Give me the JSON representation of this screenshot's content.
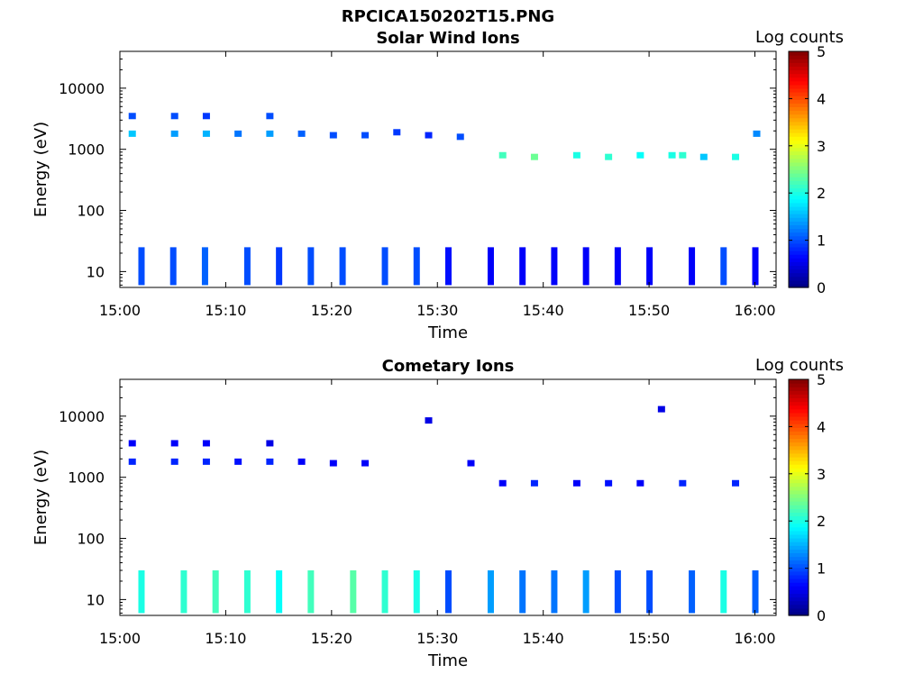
{
  "figure_title": "RPCICA150202T15.PNG",
  "chart_data": [
    {
      "type": "heatmap",
      "title": "Solar Wind Ions",
      "xlabel": "Time",
      "ylabel": "Energy (eV)",
      "yscale": "log",
      "ylim": [
        5.5,
        40000
      ],
      "xlim": [
        "15:00",
        "16:02"
      ],
      "x_ticks": [
        "15:00",
        "15:10",
        "15:20",
        "15:30",
        "15:40",
        "15:50",
        "16:00"
      ],
      "y_ticks": [
        {
          "value": 10,
          "label": "10"
        },
        {
          "value": 100,
          "label": "100"
        },
        {
          "value": 1000,
          "label": "1000"
        },
        {
          "value": 10000,
          "label": "10000"
        }
      ],
      "colorbar": {
        "label": "Log counts",
        "range": [
          0,
          5
        ],
        "ticks": [
          "0",
          "1",
          "2",
          "3",
          "4",
          "5"
        ],
        "colormap": "jet"
      },
      "cells": [
        {
          "t": "15:01",
          "e": 1800,
          "v": 1.6
        },
        {
          "t": "15:01",
          "e": 3500,
          "v": 1.0
        },
        {
          "t": "15:05",
          "e": 1800,
          "v": 1.4
        },
        {
          "t": "15:05",
          "e": 3500,
          "v": 1.0
        },
        {
          "t": "15:08",
          "e": 1800,
          "v": 1.5
        },
        {
          "t": "15:08",
          "e": 3500,
          "v": 0.9
        },
        {
          "t": "15:11",
          "e": 1800,
          "v": 1.2
        },
        {
          "t": "15:14",
          "e": 1800,
          "v": 1.4
        },
        {
          "t": "15:14",
          "e": 3500,
          "v": 1.0
        },
        {
          "t": "15:17",
          "e": 1800,
          "v": 1.1
        },
        {
          "t": "15:20",
          "e": 1700,
          "v": 1.0
        },
        {
          "t": "15:23",
          "e": 1700,
          "v": 1.0
        },
        {
          "t": "15:26",
          "e": 1900,
          "v": 0.9
        },
        {
          "t": "15:29",
          "e": 1700,
          "v": 0.8
        },
        {
          "t": "15:32",
          "e": 1600,
          "v": 1.0
        },
        {
          "t": "15:36",
          "e": 800,
          "v": 2.2
        },
        {
          "t": "15:39",
          "e": 750,
          "v": 2.4
        },
        {
          "t": "15:43",
          "e": 800,
          "v": 2.0
        },
        {
          "t": "15:46",
          "e": 750,
          "v": 2.1
        },
        {
          "t": "15:49",
          "e": 800,
          "v": 1.9
        },
        {
          "t": "15:52",
          "e": 800,
          "v": 2.0
        },
        {
          "t": "15:53",
          "e": 800,
          "v": 2.1
        },
        {
          "t": "15:55",
          "e": 750,
          "v": 1.6
        },
        {
          "t": "15:58",
          "e": 750,
          "v": 2.0
        },
        {
          "t": "16:00",
          "e": 1800,
          "v": 1.3
        }
      ],
      "bursts": [
        {
          "t": "15:02",
          "lo": 6,
          "hi": 25,
          "v": 1.0
        },
        {
          "t": "15:05",
          "lo": 6,
          "hi": 25,
          "v": 1.0
        },
        {
          "t": "15:08",
          "lo": 6,
          "hi": 25,
          "v": 1.1
        },
        {
          "t": "15:12",
          "lo": 6,
          "hi": 25,
          "v": 1.0
        },
        {
          "t": "15:15",
          "lo": 6,
          "hi": 25,
          "v": 0.9
        },
        {
          "t": "15:18",
          "lo": 6,
          "hi": 25,
          "v": 1.0
        },
        {
          "t": "15:21",
          "lo": 6,
          "hi": 25,
          "v": 1.0
        },
        {
          "t": "15:25",
          "lo": 6,
          "hi": 25,
          "v": 1.0
        },
        {
          "t": "15:28",
          "lo": 6,
          "hi": 25,
          "v": 1.0
        },
        {
          "t": "15:31",
          "lo": 6,
          "hi": 25,
          "v": 0.7
        },
        {
          "t": "15:35",
          "lo": 6,
          "hi": 25,
          "v": 0.6
        },
        {
          "t": "15:38",
          "lo": 6,
          "hi": 25,
          "v": 0.6
        },
        {
          "t": "15:41",
          "lo": 6,
          "hi": 25,
          "v": 0.6
        },
        {
          "t": "15:44",
          "lo": 6,
          "hi": 25,
          "v": 0.6
        },
        {
          "t": "15:47",
          "lo": 6,
          "hi": 25,
          "v": 0.6
        },
        {
          "t": "15:50",
          "lo": 6,
          "hi": 25,
          "v": 0.6
        },
        {
          "t": "15:54",
          "lo": 6,
          "hi": 25,
          "v": 0.6
        },
        {
          "t": "15:57",
          "lo": 6,
          "hi": 25,
          "v": 1.0
        },
        {
          "t": "16:00",
          "lo": 6,
          "hi": 25,
          "v": 0.6
        }
      ]
    },
    {
      "type": "heatmap",
      "title": "Cometary Ions",
      "xlabel": "Time",
      "ylabel": "Energy (eV)",
      "yscale": "log",
      "ylim": [
        5.5,
        40000
      ],
      "xlim": [
        "15:00",
        "16:02"
      ],
      "x_ticks": [
        "15:00",
        "15:10",
        "15:20",
        "15:30",
        "15:40",
        "15:50",
        "16:00"
      ],
      "y_ticks": [
        {
          "value": 10,
          "label": "10"
        },
        {
          "value": 100,
          "label": "100"
        },
        {
          "value": 1000,
          "label": "1000"
        },
        {
          "value": 10000,
          "label": "10000"
        }
      ],
      "colorbar": {
        "label": "Log counts",
        "range": [
          0,
          5
        ],
        "ticks": [
          "0",
          "1",
          "2",
          "3",
          "4",
          "5"
        ],
        "colormap": "jet"
      },
      "cells": [
        {
          "t": "15:01",
          "e": 3600,
          "v": 0.6
        },
        {
          "t": "15:01",
          "e": 1800,
          "v": 0.8
        },
        {
          "t": "15:05",
          "e": 3600,
          "v": 0.6
        },
        {
          "t": "15:05",
          "e": 1800,
          "v": 0.8
        },
        {
          "t": "15:08",
          "e": 3600,
          "v": 0.6
        },
        {
          "t": "15:08",
          "e": 1800,
          "v": 0.8
        },
        {
          "t": "15:11",
          "e": 1800,
          "v": 0.7
        },
        {
          "t": "15:14",
          "e": 1800,
          "v": 0.8
        },
        {
          "t": "15:14",
          "e": 3600,
          "v": 0.5
        },
        {
          "t": "15:17",
          "e": 1800,
          "v": 0.6
        },
        {
          "t": "15:20",
          "e": 1700,
          "v": 0.6
        },
        {
          "t": "15:23",
          "e": 1700,
          "v": 0.6
        },
        {
          "t": "15:29",
          "e": 8500,
          "v": 0.5
        },
        {
          "t": "15:33",
          "e": 1700,
          "v": 0.6
        },
        {
          "t": "15:36",
          "e": 800,
          "v": 0.6
        },
        {
          "t": "15:39",
          "e": 800,
          "v": 0.8
        },
        {
          "t": "15:43",
          "e": 800,
          "v": 0.6
        },
        {
          "t": "15:46",
          "e": 800,
          "v": 0.7
        },
        {
          "t": "15:49",
          "e": 800,
          "v": 0.6
        },
        {
          "t": "15:51",
          "e": 13000,
          "v": 0.5
        },
        {
          "t": "15:53",
          "e": 800,
          "v": 0.8
        },
        {
          "t": "15:58",
          "e": 800,
          "v": 0.8
        }
      ],
      "bursts": [
        {
          "t": "15:02",
          "lo": 6,
          "hi": 30,
          "v": 2.0
        },
        {
          "t": "15:06",
          "lo": 6,
          "hi": 30,
          "v": 2.1
        },
        {
          "t": "15:09",
          "lo": 6,
          "hi": 30,
          "v": 2.2
        },
        {
          "t": "15:12",
          "lo": 6,
          "hi": 30,
          "v": 2.1
        },
        {
          "t": "15:15",
          "lo": 6,
          "hi": 30,
          "v": 1.9
        },
        {
          "t": "15:18",
          "lo": 6,
          "hi": 30,
          "v": 2.2
        },
        {
          "t": "15:22",
          "lo": 6,
          "hi": 30,
          "v": 2.3
        },
        {
          "t": "15:25",
          "lo": 6,
          "hi": 30,
          "v": 2.1
        },
        {
          "t": "15:28",
          "lo": 6,
          "hi": 30,
          "v": 2.0
        },
        {
          "t": "15:31",
          "lo": 6,
          "hi": 30,
          "v": 1.0
        },
        {
          "t": "15:35",
          "lo": 6,
          "hi": 30,
          "v": 1.4
        },
        {
          "t": "15:38",
          "lo": 6,
          "hi": 30,
          "v": 1.2
        },
        {
          "t": "15:41",
          "lo": 6,
          "hi": 30,
          "v": 1.2
        },
        {
          "t": "15:44",
          "lo": 6,
          "hi": 30,
          "v": 1.4
        },
        {
          "t": "15:47",
          "lo": 6,
          "hi": 30,
          "v": 1.0
        },
        {
          "t": "15:50",
          "lo": 6,
          "hi": 30,
          "v": 1.0
        },
        {
          "t": "15:54",
          "lo": 6,
          "hi": 30,
          "v": 1.1
        },
        {
          "t": "15:57",
          "lo": 6,
          "hi": 30,
          "v": 2.0
        },
        {
          "t": "16:00",
          "lo": 6,
          "hi": 30,
          "v": 1.1
        }
      ]
    }
  ]
}
